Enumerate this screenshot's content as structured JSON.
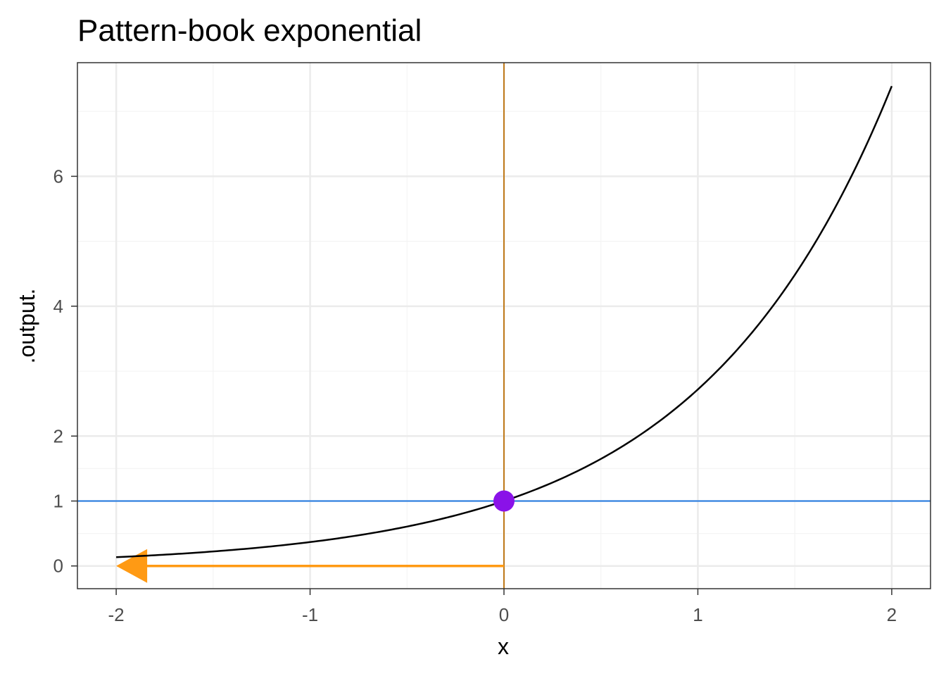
{
  "chart_data": {
    "type": "line",
    "title": "Pattern-book exponential",
    "xlabel": "x",
    "ylabel": ".output.",
    "xlim": [
      -2.2,
      2.2
    ],
    "ylim": [
      -0.35,
      7.75
    ],
    "x_ticks": [
      -2,
      -1,
      0,
      1,
      2
    ],
    "x_tick_labels": [
      "-2",
      "-1",
      "0",
      "1",
      "2"
    ],
    "y_ticks": [
      0,
      1,
      2,
      4,
      6
    ],
    "y_tick_labels": [
      "0",
      "1",
      "2",
      "4",
      "6"
    ],
    "x_minor_gridlines": [
      -1.5,
      -0.5,
      0.5,
      1.5
    ],
    "y_minor_gridlines": [
      0.5,
      1.5,
      3,
      5,
      7
    ],
    "grid": true,
    "legend": "none",
    "series": [
      {
        "function": "exp(x)",
        "x_range": [
          -2,
          2
        ],
        "color": "#000000"
      }
    ],
    "annotations": {
      "horizontal_line": {
        "y": 1,
        "color": "#1f77e0"
      },
      "vertical_line": {
        "x": 0,
        "color": "#c07a1a"
      },
      "point": {
        "x": 0,
        "y": 1,
        "color": "#8a12e8"
      },
      "arrow": {
        "from": [
          0,
          0
        ],
        "to": [
          -2,
          0
        ],
        "color": "#ff9a14"
      }
    }
  },
  "colors": {
    "panel_border": "#333333",
    "grid_major": "#ebebeb",
    "grid_minor": "#f4f4f4",
    "tick": "#333333"
  }
}
